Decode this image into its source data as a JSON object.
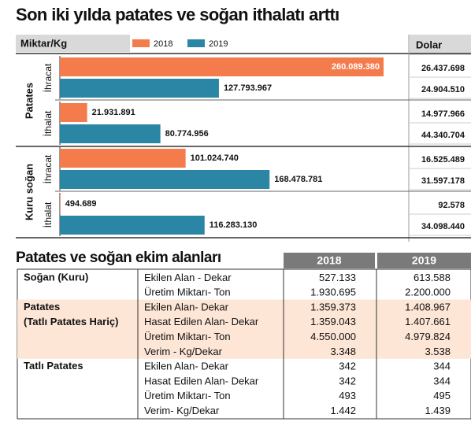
{
  "title": "Son iki yılda patates ve soğan ithalatı arttı",
  "chart_data": {
    "type": "bar",
    "orientation": "horizontal",
    "axis_label": "Miktar/Kg",
    "dollar_header": "Dolar",
    "groups": [
      {
        "label": "Patates",
        "subgroups": [
          "İhracat",
          "İthalat"
        ]
      },
      {
        "label": "Kuru soğan",
        "subgroups": [
          "İhracat",
          "İthalat"
        ]
      }
    ],
    "series": [
      {
        "name": "2018",
        "color": "#f47c4c",
        "values": [
          260089380,
          21931891,
          101024740,
          494689
        ],
        "value_labels": [
          "260.089.380",
          "21.931.891",
          "101.024.740",
          "494.689"
        ],
        "dollar_values": [
          "26.437.698",
          "14.977.966",
          "16.525.489",
          "92.578"
        ]
      },
      {
        "name": "2019",
        "color": "#2a86a4",
        "values": [
          127793967,
          80774956,
          168478781,
          116283130
        ],
        "value_labels": [
          "127.793.967",
          "80.774.956",
          "168.478.781",
          "116.283.130"
        ],
        "dollar_values": [
          "24.904.510",
          "44.340.704",
          "31.597.178",
          "34.098.440"
        ]
      }
    ]
  },
  "table": {
    "title": "Patates ve soğan ekim alanları",
    "header": [
      "2018",
      "2019"
    ],
    "groups": [
      {
        "label": [
          "Soğan (Kuru)"
        ],
        "rows": [
          [
            "Ekilen Alan - Dekar",
            "527.133",
            "613.588"
          ],
          [
            "Üretim Miktarı- Ton",
            "1.930.695",
            "2.200.000"
          ]
        ]
      },
      {
        "label": [
          "Patates",
          "(Tatlı Patates Hariç)"
        ],
        "rows": [
          [
            "Ekilen Alan- Dekar",
            "1.359.373",
            "1.408.967"
          ],
          [
            "Hasat Edilen Alan- Dekar",
            "1.359.043",
            "1.407.661"
          ],
          [
            "Üretim Miktarı- Ton",
            "4.550.000",
            "4.979.824"
          ],
          [
            "Verim - Kg/Dekar",
            "3.348",
            "3.538"
          ]
        ]
      },
      {
        "label": [
          "Tatlı Patates"
        ],
        "rows": [
          [
            "Ekilen Alan- Dekar",
            "342",
            "344"
          ],
          [
            "Hasat Edilen Alan- Dekar",
            "342",
            "344"
          ],
          [
            "Üretim Miktarı- Ton",
            "493",
            "495"
          ],
          [
            "Verim- Kg/Dekar",
            "1.442",
            "1.439"
          ]
        ]
      }
    ]
  }
}
